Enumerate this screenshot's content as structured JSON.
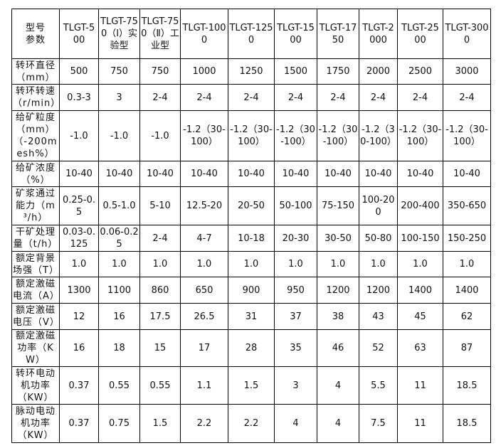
{
  "table": {
    "header": [
      "型号 参数",
      "TLGT-500",
      "TLGT-750（Ⅰ）实验型",
      "TLGT-750（Ⅱ）工业型",
      "TLGT-1000",
      "TLGT-1250",
      "TLGT-1500",
      "TLGT-1750",
      "TLGT-2000",
      "TLGT-2500",
      "TLGT-3000"
    ],
    "rows": [
      [
        "转环直径（mm）",
        "500",
        "750",
        "750",
        "1000",
        "1250",
        "1500",
        "1750",
        "2000",
        "2500",
        "3000"
      ],
      [
        "转环转速（r/min）",
        "0.3-3",
        "3",
        "2-4",
        "2-4",
        "2-4",
        "2-4",
        "2-4",
        "2-4",
        "2-4",
        "2-4"
      ],
      [
        "给矿粒度（mm）（-200mesh%）",
        "-1.0",
        "-1.0",
        "-1.0",
        "-1.2（30-100）",
        "-1.2（30-100）",
        "-1.2（30-100）",
        "-1.2（30-100）",
        "-1.2（30-100）",
        "-1.2（30-100）",
        "-1.2（30-100）"
      ],
      [
        "给矿浓度（%）",
        "10-40",
        "10-40",
        "10-40",
        "10-40",
        "10-40",
        "10-40",
        "10-40",
        "10-40",
        "10-40",
        "10-40"
      ],
      [
        "矿浆通过能力（m³/h）",
        "0.25-0.5",
        "0.5-1.0",
        "5-10",
        "12.5-20",
        "20-50",
        "50-100",
        "75-150",
        "100-200",
        "200-400",
        "350-650"
      ],
      [
        "干矿处理量（t/h）",
        "0.03-0.125",
        "0.06-0.25",
        "2-4",
        "4-7",
        "10-18",
        "20-30",
        "30-50",
        "50-80",
        "100-150",
        "150-250"
      ],
      [
        "额定背景场强（T）",
        "1.0",
        "1.0",
        "1.0",
        "1.0",
        "1.0",
        "1.0",
        "1.0",
        "1.0",
        "1.0",
        "1.0"
      ],
      [
        "额定激磁电流（A）",
        "1300",
        "1100",
        "860",
        "650",
        "900",
        "950",
        "1200",
        "1200",
        "1400",
        "1400"
      ],
      [
        "额定激磁电压（V）",
        "12",
        "16",
        "17.5",
        "26.5",
        "31",
        "37",
        "38",
        "43",
        "45",
        "62"
      ],
      [
        "额定激磁功率（KW）",
        "16",
        "18",
        "15",
        "17",
        "28",
        "35",
        "46",
        "52",
        "63",
        "87"
      ],
      [
        "转环电动机功率（KW）",
        "0.37",
        "0.55",
        "0.55",
        "1.1",
        "1.5",
        "3",
        "4",
        "5.5",
        "11",
        "18.5"
      ],
      [
        "脉动电动机功率（KW）",
        "0.37",
        "0.75",
        "1.5",
        "2.2",
        "2.2",
        "4",
        "4",
        "7.5",
        "11",
        "18.5"
      ]
    ]
  }
}
